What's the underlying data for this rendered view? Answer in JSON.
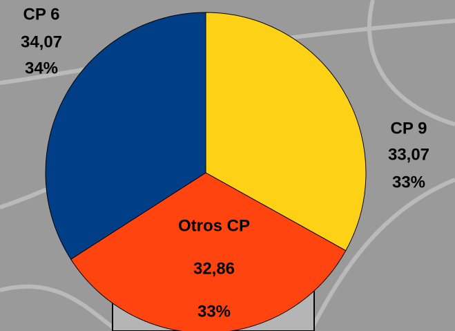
{
  "chart_data": {
    "type": "pie",
    "categories": [
      "CP 9",
      "Otros CP",
      "CP 6"
    ],
    "values": [
      33.07,
      32.86,
      34.07
    ],
    "value_labels": [
      "33,07",
      "32,86",
      "34,07"
    ],
    "percentages": [
      33,
      33,
      34
    ],
    "percentage_labels": [
      "33%",
      "33%",
      "34%"
    ],
    "colors": [
      "#fcd116",
      "#ff4410",
      "#003f87"
    ]
  }
}
